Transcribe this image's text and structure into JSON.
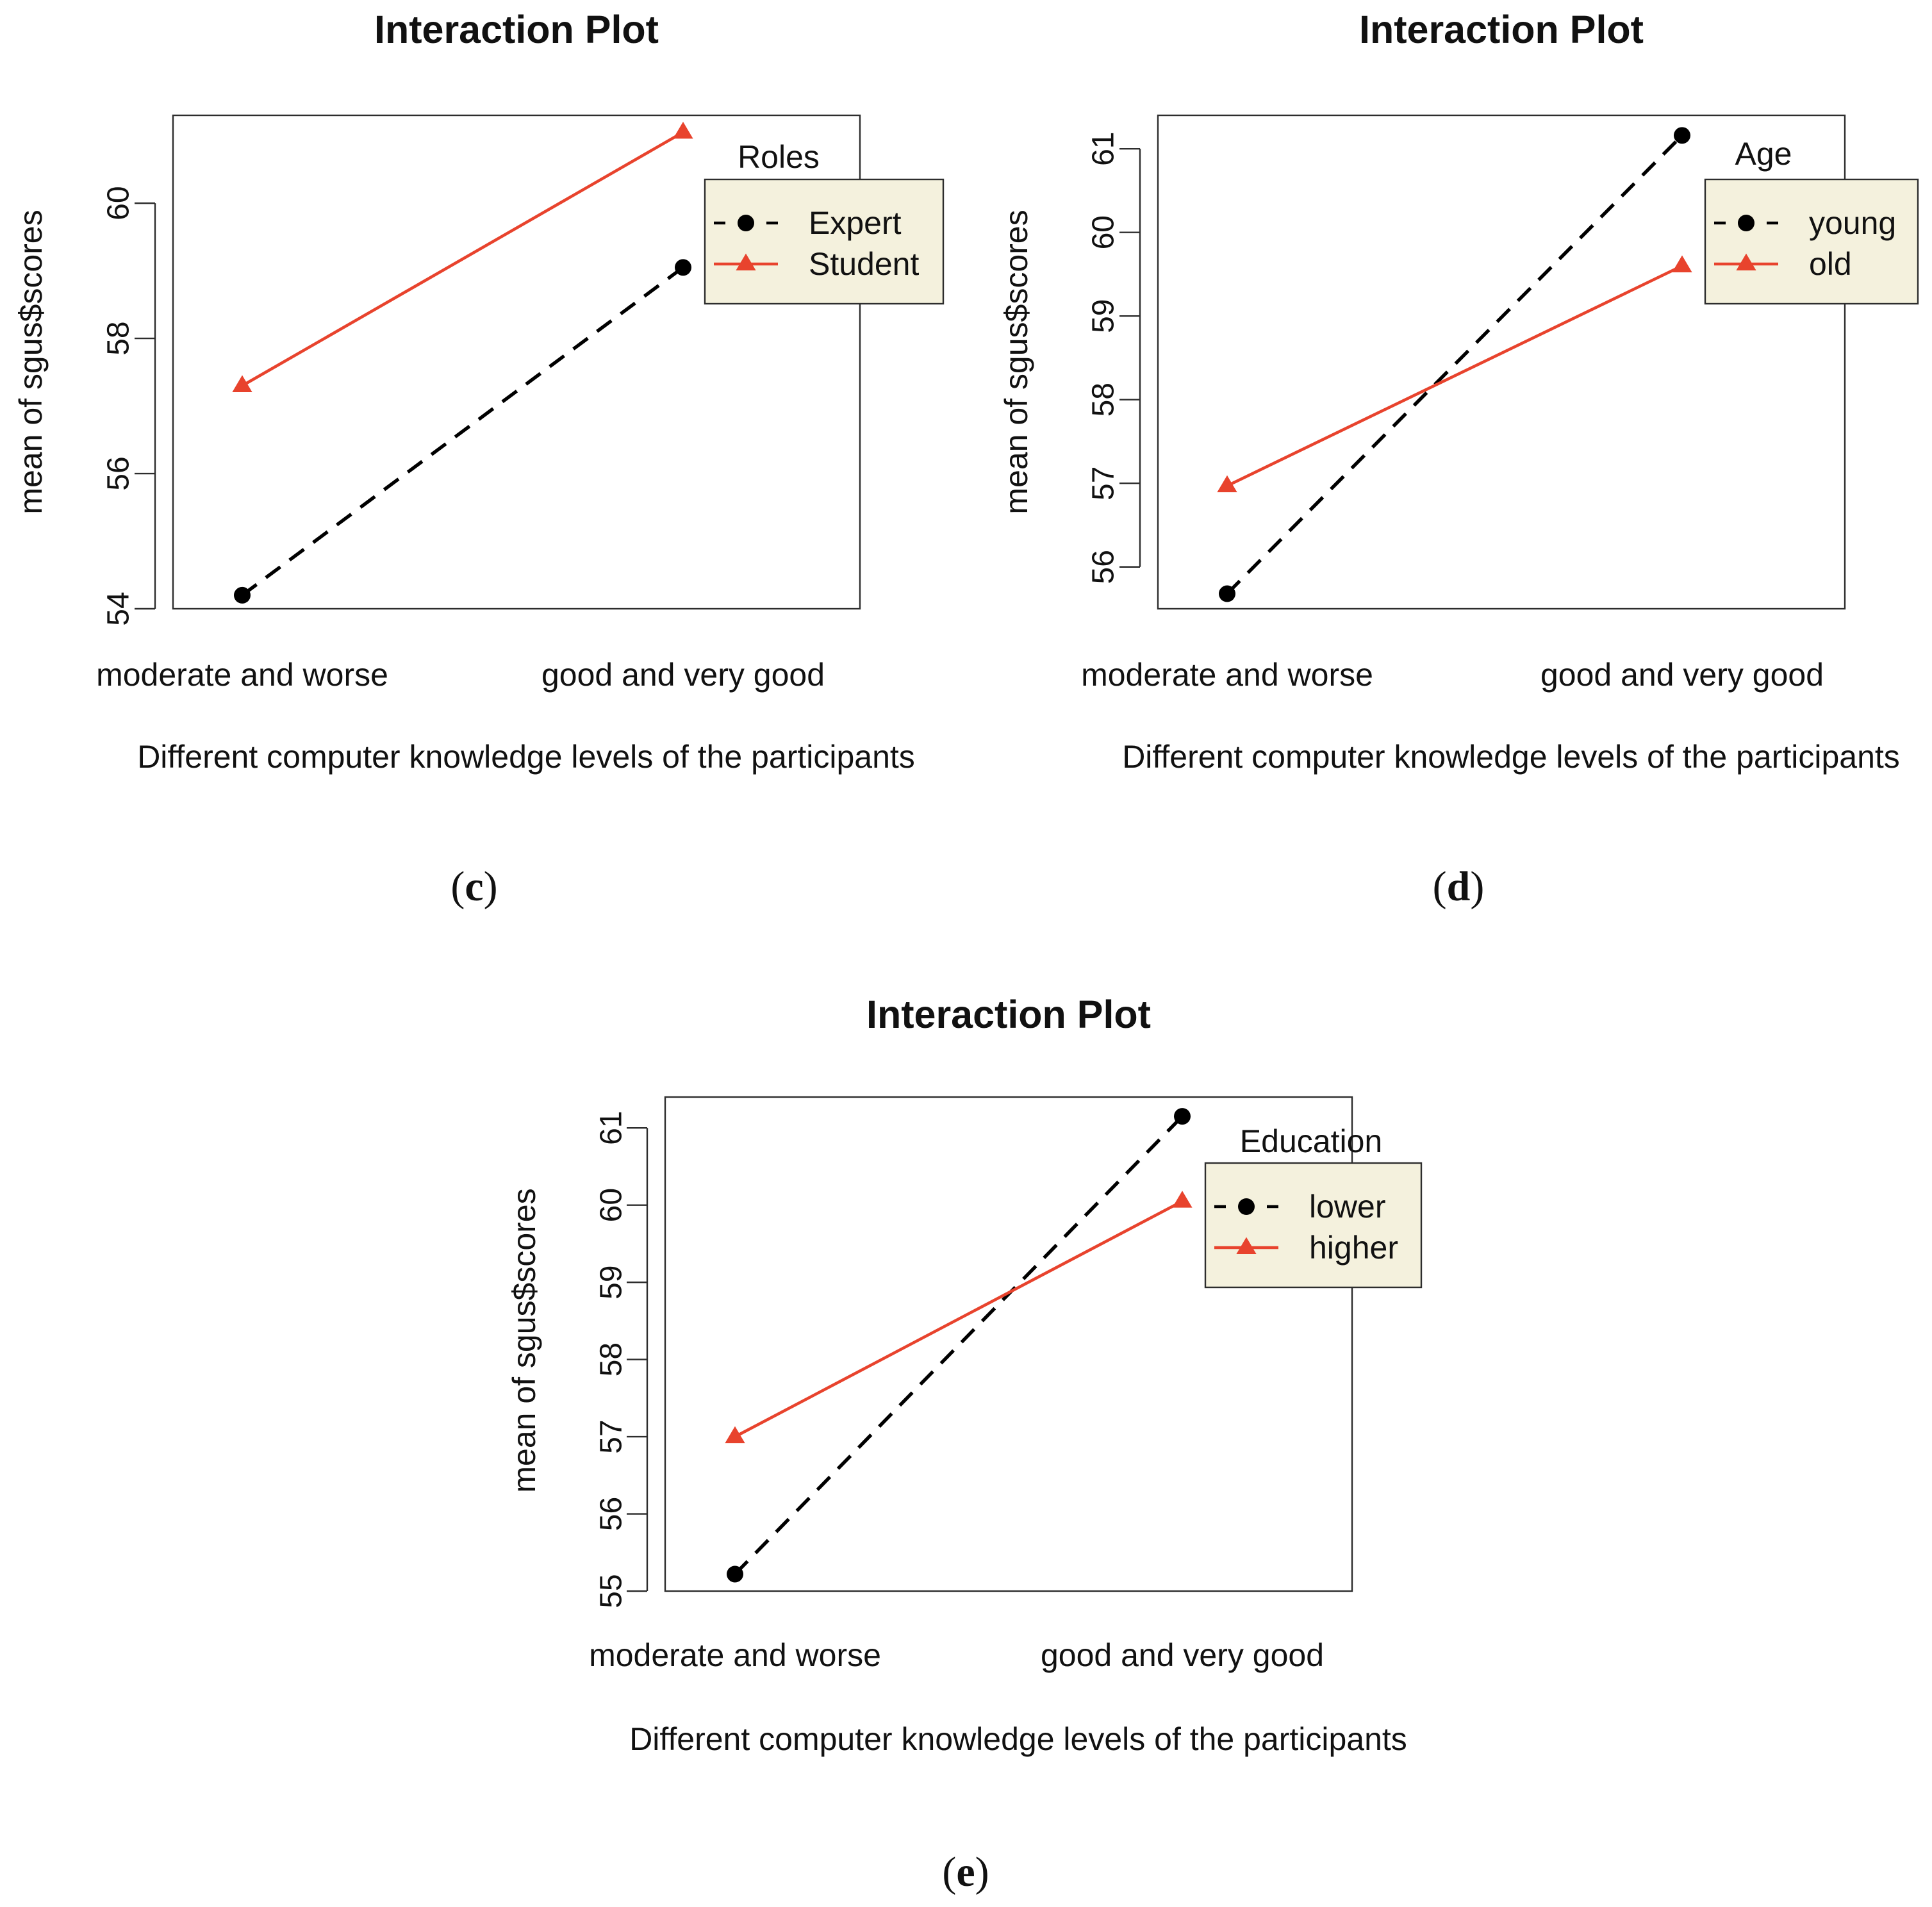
{
  "figure": {
    "panels": [
      "c",
      "d",
      "e"
    ]
  },
  "chart_data": [
    {
      "id": "c",
      "type": "line",
      "title": "Interaction Plot",
      "xlabel": "Different computer knowledge levels of the participants",
      "ylabel": "mean of  sgus$scores",
      "categories": [
        "moderate and worse",
        "good and very good"
      ],
      "ylim": [
        54,
        61.3
      ],
      "yticks": [
        54,
        56,
        58,
        60
      ],
      "grid": false,
      "panel_label": "(c)",
      "legend": {
        "title": "Roles",
        "position": "top-right"
      },
      "series": [
        {
          "name": "Expert",
          "values": [
            54.2,
            59.05
          ],
          "color": "#000000",
          "line_style": "dashed",
          "marker": "circle"
        },
        {
          "name": "Student",
          "values": [
            57.3,
            61.05
          ],
          "color": "#e8432d",
          "line_style": "solid",
          "marker": "triangle"
        }
      ]
    },
    {
      "id": "d",
      "type": "line",
      "title": "Interaction Plot",
      "xlabel": "Different computer knowledge levels of the participants",
      "ylabel": "mean of  sgus$scores",
      "categories": [
        "moderate and worse",
        "good and very good"
      ],
      "ylim": [
        55.5,
        61.4
      ],
      "yticks": [
        56,
        57,
        58,
        59,
        60,
        61
      ],
      "grid": false,
      "panel_label": "(d)",
      "legend": {
        "title": "Age",
        "position": "top-right"
      },
      "series": [
        {
          "name": "young",
          "values": [
            55.68,
            61.16
          ],
          "color": "#000000",
          "line_style": "dashed",
          "marker": "circle"
        },
        {
          "name": "old",
          "values": [
            56.97,
            59.6
          ],
          "color": "#e8432d",
          "line_style": "solid",
          "marker": "triangle"
        }
      ]
    },
    {
      "id": "e",
      "type": "line",
      "title": "Interaction Plot",
      "xlabel": "Different computer knowledge levels of the participants",
      "ylabel": "mean of  sgus$scores",
      "categories": [
        "moderate and worse",
        "good and very good"
      ],
      "ylim": [
        55,
        61.4
      ],
      "yticks": [
        55,
        56,
        57,
        58,
        59,
        60,
        61
      ],
      "grid": false,
      "panel_label": "(e)",
      "legend": {
        "title": "Education",
        "position": "top-right"
      },
      "series": [
        {
          "name": "lower",
          "values": [
            55.22,
            61.15
          ],
          "color": "#000000",
          "line_style": "dashed",
          "marker": "circle"
        },
        {
          "name": "higher",
          "values": [
            57.0,
            60.05
          ],
          "color": "#e8432d",
          "line_style": "solid",
          "marker": "triangle"
        }
      ]
    }
  ]
}
